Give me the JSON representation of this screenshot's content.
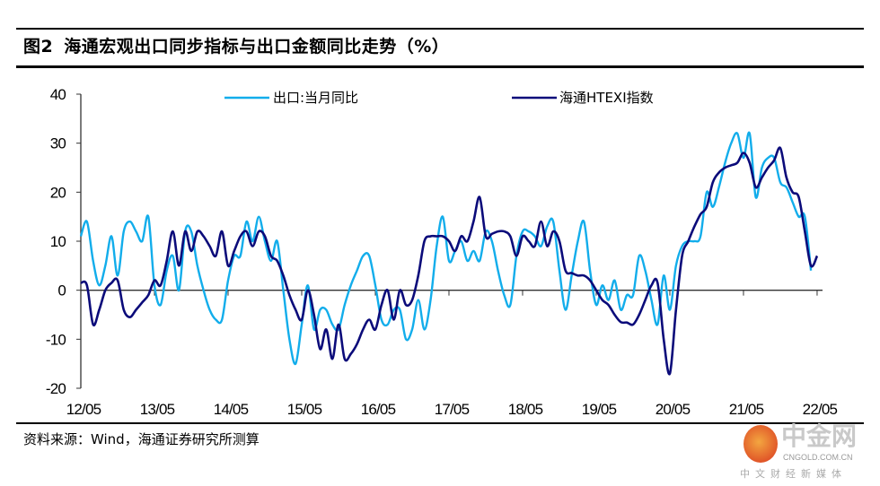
{
  "figure": {
    "number": "图2",
    "title": "海通宏观出口同步指标与出口金额同比走势（%）",
    "source": "资料来源：Wind，海通证券研究所测算"
  },
  "watermark": {
    "brand": "中金网",
    "domain": "CNGOLD.COM.CN",
    "tagline": "中文财经新媒体"
  },
  "colors": {
    "export_yoy": "#12ADEB",
    "htexi": "#0B0B7A"
  },
  "chart_data": {
    "type": "line",
    "title": "海通宏观出口同步指标与出口金额同比走势（%）",
    "xlabel": "",
    "ylabel": "%",
    "x_start": "2012-05",
    "x_frequency": "monthly",
    "x_ticks": [
      "12/05",
      "13/05",
      "14/05",
      "15/05",
      "16/05",
      "17/05",
      "18/05",
      "19/05",
      "20/05",
      "21/05",
      "22/05"
    ],
    "y_ticks": [
      "40",
      "30",
      "20",
      "10",
      "0",
      "-10",
      "-20"
    ],
    "ylim": [
      -20,
      40
    ],
    "grid": false,
    "legend_position": "top",
    "series": [
      {
        "name": "出口:当月同比",
        "color": "#12ADEB",
        "values": [
          11,
          14,
          6,
          1,
          5,
          11,
          3,
          12,
          14,
          12,
          10,
          15,
          1,
          -3,
          4,
          7,
          0,
          12,
          12,
          5,
          0,
          -4,
          -6,
          -6,
          2,
          7,
          7,
          14,
          10,
          15,
          10,
          6,
          10,
          0,
          -10,
          -15,
          -7,
          1,
          -8,
          -4,
          -4,
          -7,
          -8,
          -3,
          1,
          4,
          7,
          7,
          1,
          -6,
          -7,
          -4,
          -4,
          -10,
          -8,
          -2,
          -8,
          -2,
          9,
          15,
          6,
          8,
          10,
          6,
          8,
          6,
          12,
          10,
          4,
          -1,
          -3,
          7,
          12,
          12,
          11,
          9,
          13,
          14,
          4,
          -4,
          3,
          10,
          14,
          4,
          -3,
          1,
          -2,
          2,
          -4,
          -1,
          -1,
          7,
          4,
          -2,
          -7,
          3,
          -4,
          5,
          9,
          10,
          10,
          11,
          20,
          17,
          21,
          26,
          30,
          32,
          27,
          32,
          19,
          25,
          27,
          27,
          22,
          21,
          18,
          15,
          15,
          4
        ]
      },
      {
        "name": "海通HTEXI指数",
        "color": "#0B0B7A",
        "values": [
          1.5,
          1,
          -7,
          -4,
          0,
          1.5,
          2,
          -4,
          -5.5,
          -4,
          -2.5,
          -1,
          2,
          1,
          6,
          12,
          5,
          12,
          8,
          12,
          11,
          9,
          7,
          12,
          5,
          8,
          11,
          12,
          9,
          12,
          11,
          7,
          6,
          3,
          -1,
          -4,
          -6,
          0,
          -5,
          -12,
          -8,
          -14,
          -7,
          -14,
          -13,
          -11,
          -8,
          -6,
          -8,
          -3,
          0,
          -6,
          0,
          -3,
          -2,
          3,
          10,
          11,
          11,
          11,
          10,
          8,
          11,
          10,
          14,
          19,
          11,
          11.5,
          12,
          12,
          11,
          7,
          11,
          10,
          9,
          14,
          9,
          12,
          10,
          4,
          3.5,
          3,
          3,
          2,
          0,
          -2,
          -3,
          -5,
          -6.5,
          -6.6,
          -7,
          -5,
          -2,
          1,
          1.5,
          -10,
          -17,
          -4,
          7,
          10,
          13,
          15.5,
          17,
          22,
          24,
          25,
          25.5,
          26,
          28,
          26,
          21,
          23,
          25,
          26.5,
          29,
          23,
          20,
          19,
          12,
          5,
          7
        ]
      }
    ]
  }
}
